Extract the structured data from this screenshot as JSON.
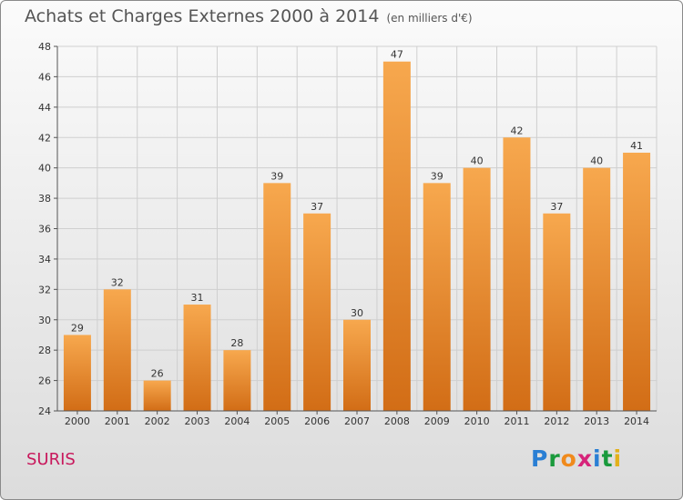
{
  "title": "Achats et Charges Externes 2000 à 2014",
  "unit_note": "(en milliers d'€)",
  "commune": "SURIS",
  "logo": {
    "letters": [
      "P",
      "r",
      "o",
      "x",
      "i",
      "t",
      "i"
    ],
    "colors": [
      "#2a7fd4",
      "#1a9a3c",
      "#f08a1c",
      "#d6247a",
      "#2a7fd4",
      "#1a9a3c",
      "#e3b01a"
    ]
  },
  "colors": {
    "bar": "#f39a3c",
    "bar_dark": "#d9741a",
    "grid": "#cfcfcf",
    "commune": "#c8185c"
  },
  "chart_data": {
    "type": "bar",
    "categories": [
      "2000",
      "2001",
      "2002",
      "2003",
      "2004",
      "2005",
      "2006",
      "2007",
      "2008",
      "2009",
      "2010",
      "2011",
      "2012",
      "2013",
      "2014"
    ],
    "values": [
      29,
      32,
      26,
      31,
      28,
      39,
      37,
      30,
      47,
      39,
      40,
      42,
      37,
      40,
      41
    ],
    "ylim": [
      24,
      48
    ],
    "yticks": [
      24,
      26,
      28,
      30,
      32,
      34,
      36,
      38,
      40,
      42,
      44,
      46,
      48
    ],
    "grid": true
  }
}
